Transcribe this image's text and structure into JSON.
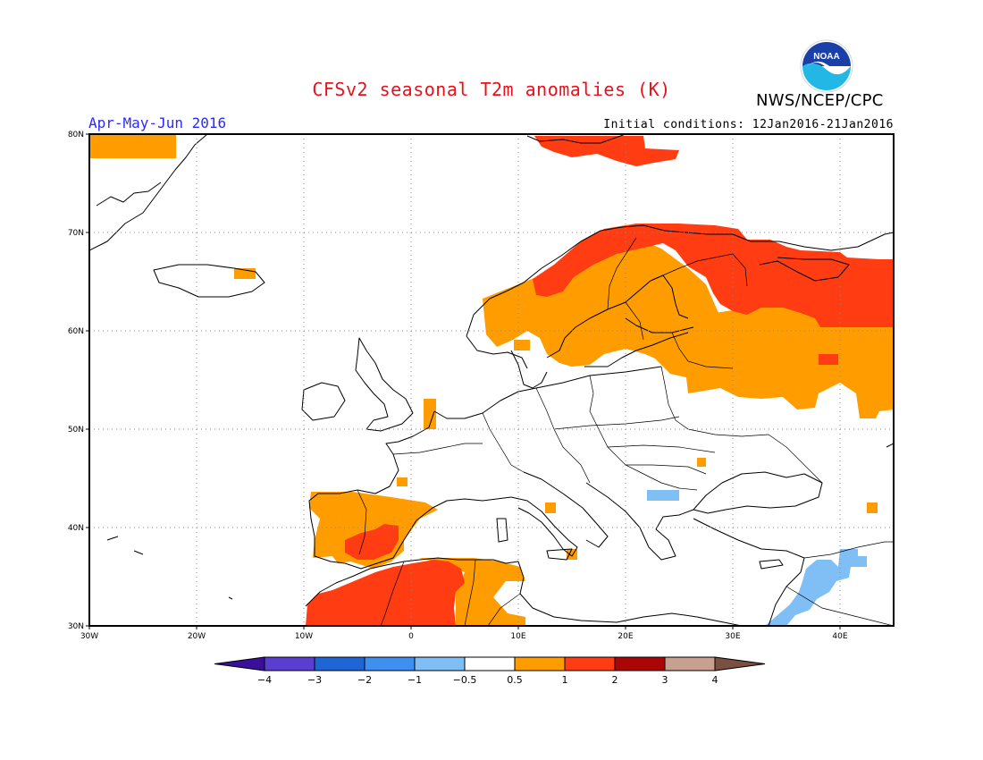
{
  "header": {
    "title": "CFSv2 seasonal T2m anomalies (K)",
    "agency": "NWS/NCEP/CPC",
    "period": "Apr-May-Jun 2016",
    "initial_conditions": "Initial conditions: 12Jan2016-21Jan2016",
    "logo_text": "NOAA"
  },
  "map": {
    "lon_range": [
      -30,
      45
    ],
    "lat_range": [
      30,
      80
    ],
    "lat_labels": [
      "30N",
      "40N",
      "50N",
      "60N",
      "70N",
      "80N"
    ],
    "lon_labels": [
      "30W",
      "20W",
      "10W",
      "0",
      "10E",
      "20E",
      "30E",
      "40E"
    ],
    "gridlines": "dotted"
  },
  "colorbar": {
    "labels": [
      "-4",
      "-3",
      "-2",
      "-1",
      "-0.5",
      "0.5",
      "1",
      "2",
      "3",
      "4"
    ],
    "colors": [
      "#3a0f9c",
      "#5a3ed0",
      "#1e66d6",
      "#3f8ff0",
      "#80bff5",
      "#ffffff",
      "#ff9c00",
      "#ff3c12",
      "#aa0606",
      "#c8a090",
      "#7a5040"
    ]
  },
  "colors": {
    "title": "#e8101c",
    "period": "#2a2aff",
    "anom_05_1": "#ff9c00",
    "anom_1_2": "#ff3c12",
    "anom_neg_05_1": "#80bff5"
  }
}
